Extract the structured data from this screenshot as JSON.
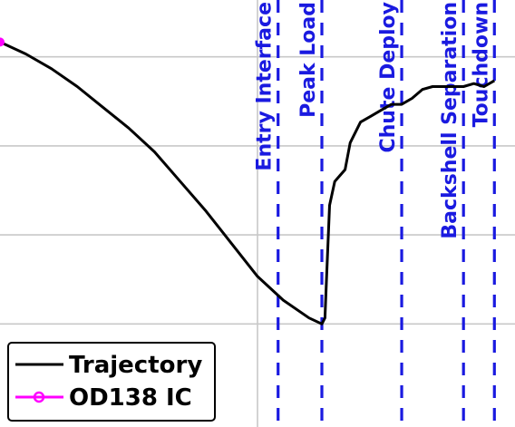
{
  "chart_data": {
    "type": "line",
    "title": "",
    "xlabel": "",
    "ylabel": "",
    "xlim": [
      0,
      100
    ],
    "ylim": [
      -10,
      100
    ],
    "grid": true,
    "legend_position": "bottom-left",
    "series": [
      {
        "name": "Trajectory",
        "color": "#000000",
        "x": [
          0,
          5,
          10,
          15,
          20,
          25,
          30,
          35,
          40,
          45,
          50,
          55,
          60,
          62.5,
          63.1,
          63.4,
          64,
          65,
          66,
          67,
          68,
          70,
          72,
          74,
          76,
          78,
          80,
          82,
          84,
          86,
          88,
          90,
          92,
          94,
          96
        ],
        "y": [
          95,
          91,
          86,
          80,
          73,
          66,
          58,
          48,
          38,
          27,
          16,
          8,
          2,
          0,
          2,
          15,
          40,
          48,
          50,
          52,
          61,
          68,
          70,
          72,
          74,
          74,
          76,
          79,
          80,
          80,
          80,
          80,
          81,
          80,
          82
        ]
      },
      {
        "name": "OD138 IC",
        "color": "#ff00ff",
        "marker": "circle",
        "x": [
          0
        ],
        "y": [
          95
        ]
      }
    ],
    "events": [
      {
        "label": "Entry Interface",
        "x": 54
      },
      {
        "label": "Peak Load",
        "x": 62.5
      },
      {
        "label": "Chute Deploy",
        "x": 78
      },
      {
        "label": "Backshell Separation",
        "x": 90
      },
      {
        "label": "Touchdown",
        "x": 96
      }
    ],
    "colors": {
      "event_lines": "#1a1ae0",
      "grid": "#c8c8c8"
    }
  }
}
